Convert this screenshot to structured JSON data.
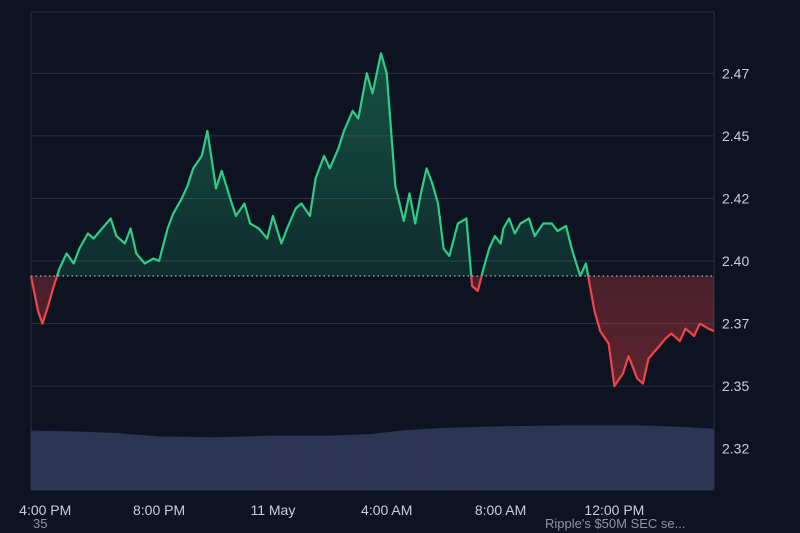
{
  "footer": {
    "left_text": "35",
    "right_text": "Ripple's $50M SEC se..."
  },
  "colors": {
    "background": "#0d1321",
    "grid": "#2a3242",
    "up_line": "#2ecc87",
    "down_line": "#f0444b",
    "baseline": "#d0d4dc",
    "volume": "#2c3552"
  },
  "chart_data": {
    "type": "line",
    "title": "",
    "xlabel": "",
    "ylabel": "",
    "x_ticks": [
      "4:00 PM",
      "8:00 PM",
      "11 May",
      "4:00 AM",
      "8:00 AM",
      "12:00 PM"
    ],
    "y_ticks": [
      "2.32",
      "2.35",
      "2.37",
      "2.40",
      "2.42",
      "2.45",
      "2.47"
    ],
    "y_tick_values": [
      2.32,
      2.345,
      2.37,
      2.395,
      2.42,
      2.445,
      2.47
    ],
    "ylim": [
      2.3035,
      2.4945
    ],
    "baseline": 2.389,
    "x_range_hours": [
      -0.5,
      23.5
    ],
    "x_tick_hours": [
      0,
      4,
      8,
      12,
      16,
      20
    ],
    "price_series": {
      "hours": [
        -0.5,
        -0.25,
        -0.1,
        0.1,
        0.3,
        0.5,
        0.75,
        1.0,
        1.2,
        1.5,
        1.7,
        2.0,
        2.3,
        2.5,
        2.8,
        3.0,
        3.2,
        3.5,
        3.8,
        4.0,
        4.3,
        4.5,
        4.8,
        5.0,
        5.2,
        5.5,
        5.7,
        6.0,
        6.2,
        6.5,
        6.7,
        7.0,
        7.2,
        7.5,
        7.8,
        8.0,
        8.3,
        8.5,
        8.8,
        9.0,
        9.3,
        9.5,
        9.8,
        10.0,
        10.3,
        10.5,
        10.8,
        11.0,
        11.3,
        11.5,
        11.8,
        12.0,
        12.3,
        12.6,
        12.8,
        13.0,
        13.2,
        13.4,
        13.6,
        13.8,
        14.0,
        14.2,
        14.5,
        14.8,
        15.0,
        15.2,
        15.4,
        15.6,
        15.8,
        16.0,
        16.1,
        16.3,
        16.5,
        16.7,
        17.0,
        17.2,
        17.5,
        17.8,
        18.0,
        18.3,
        18.5,
        18.8,
        19.0,
        19.3,
        19.5,
        19.8,
        20.0,
        20.3,
        20.5,
        20.8,
        21.0,
        21.2,
        21.5,
        21.8,
        22.0,
        22.3,
        22.5,
        22.8,
        23.0,
        23.3,
        23.5
      ],
      "values": [
        2.389,
        2.375,
        2.37,
        2.377,
        2.385,
        2.392,
        2.398,
        2.394,
        2.4,
        2.406,
        2.404,
        2.408,
        2.412,
        2.405,
        2.402,
        2.408,
        2.398,
        2.394,
        2.396,
        2.395,
        2.408,
        2.414,
        2.42,
        2.425,
        2.432,
        2.437,
        2.447,
        2.424,
        2.431,
        2.42,
        2.413,
        2.418,
        2.41,
        2.408,
        2.404,
        2.413,
        2.402,
        2.408,
        2.416,
        2.418,
        2.413,
        2.428,
        2.437,
        2.432,
        2.44,
        2.447,
        2.455,
        2.452,
        2.47,
        2.462,
        2.478,
        2.47,
        2.425,
        2.411,
        2.422,
        2.41,
        2.422,
        2.432,
        2.426,
        2.418,
        2.4,
        2.397,
        2.41,
        2.412,
        2.385,
        2.383,
        2.392,
        2.4,
        2.405,
        2.402,
        2.408,
        2.412,
        2.406,
        2.41,
        2.412,
        2.405,
        2.41,
        2.41,
        2.407,
        2.409,
        2.4,
        2.389,
        2.394,
        2.375,
        2.367,
        2.362,
        2.345,
        2.35,
        2.357,
        2.348,
        2.346,
        2.356,
        2.36,
        2.364,
        2.366,
        2.363,
        2.368,
        2.365,
        2.37,
        2.368,
        2.367
      ]
    },
    "volume_series": {
      "name": "",
      "hours": [
        -0.5,
        1.0,
        2.5,
        4.0,
        6.0,
        8.0,
        10.0,
        11.5,
        12.5,
        14.0,
        16.0,
        18.0,
        19.5,
        21.0,
        22.5,
        23.5
      ],
      "values": [
        35,
        34.5,
        33.5,
        31.5,
        31,
        32,
        32,
        33,
        35,
        36.5,
        37.5,
        38,
        38,
        38,
        37,
        36
      ]
    }
  }
}
